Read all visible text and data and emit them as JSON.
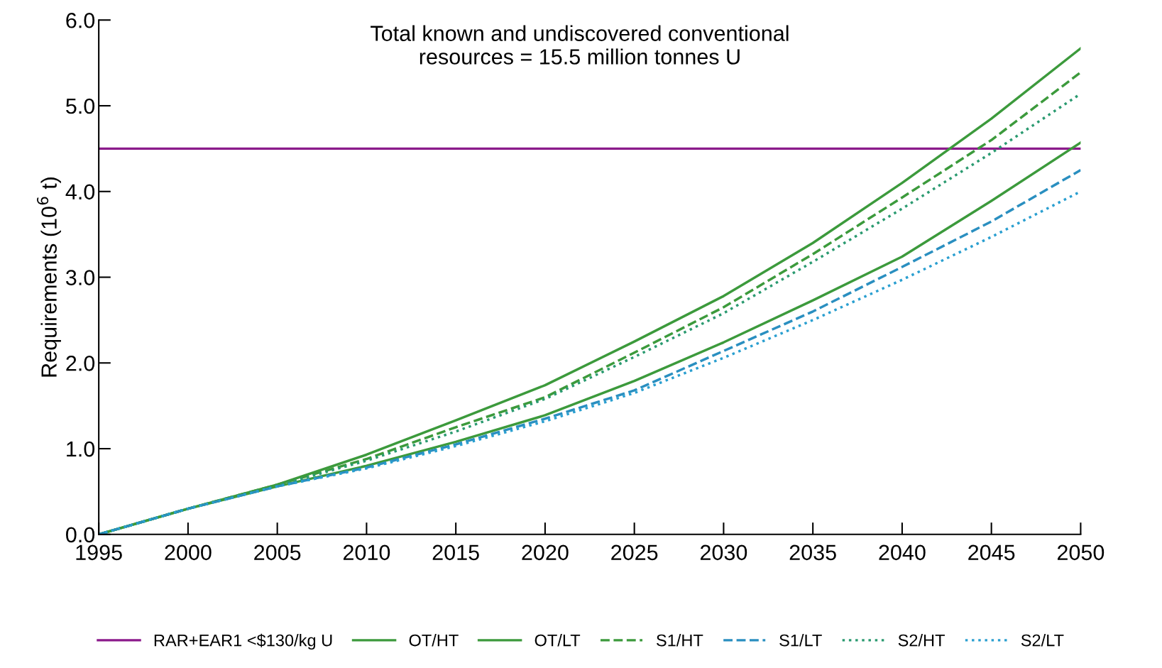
{
  "chart_data": {
    "type": "line",
    "ylabel": "Requirements (10$^{6}$ t)",
    "annotations": [
      "Total known and undiscovered conventional\nresources = 15.5 million tonnes U"
    ],
    "x": [
      1995,
      2000,
      2005,
      2010,
      2015,
      2020,
      2025,
      2030,
      2035,
      2040,
      2045,
      2050
    ],
    "series": [
      {
        "name": "RAR+EAR1 <$130/kg U",
        "color": "#8b1a8b",
        "line_style": "solid",
        "x": [
          1995,
          2050
        ],
        "values": [
          4.5,
          4.5
        ]
      },
      {
        "name": "OT/HT",
        "color": "#3c9a3c",
        "line_style": "solid",
        "values": [
          0,
          0.3,
          0.58,
          0.93,
          1.33,
          1.74,
          2.25,
          2.78,
          3.4,
          4.1,
          4.85,
          5.67
        ]
      },
      {
        "name": "OT/LT",
        "color": "#3c9a3c",
        "line_style": "solid",
        "values": [
          0,
          0.3,
          0.56,
          0.8,
          1.08,
          1.39,
          1.79,
          2.24,
          2.73,
          3.24,
          3.89,
          4.57
        ]
      },
      {
        "name": "S1/HT",
        "color": "#3c9a3c",
        "line_style": "dashed",
        "values": [
          0,
          0.3,
          0.58,
          0.88,
          1.25,
          1.6,
          2.12,
          2.65,
          3.27,
          3.93,
          4.6,
          5.39
        ]
      },
      {
        "name": "S1/LT",
        "color": "#2a8fc0",
        "line_style": "dashed",
        "values": [
          0,
          0.3,
          0.56,
          0.78,
          1.05,
          1.35,
          1.68,
          2.14,
          2.6,
          3.12,
          3.65,
          4.25
        ]
      },
      {
        "name": "S2/HT",
        "color": "#2a9a70",
        "line_style": "dotted",
        "values": [
          0,
          0.3,
          0.57,
          0.86,
          1.2,
          1.58,
          2.07,
          2.58,
          3.18,
          3.8,
          4.45,
          5.14
        ]
      },
      {
        "name": "S2/LT",
        "color": "#2a9fd0",
        "line_style": "dotted",
        "values": [
          0,
          0.3,
          0.56,
          0.77,
          1.03,
          1.32,
          1.65,
          2.06,
          2.5,
          2.97,
          3.47,
          4.0
        ]
      }
    ],
    "xlim": [
      1995,
      2050
    ],
    "xticks": [
      1995,
      2000,
      2005,
      2010,
      2015,
      2020,
      2025,
      2030,
      2035,
      2040,
      2045,
      2050
    ],
    "ylim": [
      0,
      6
    ],
    "yticks": [
      {
        "value": 0,
        "label": "0.0"
      },
      {
        "value": 1,
        "label": "1.0"
      },
      {
        "value": 2,
        "label": "2.0"
      },
      {
        "value": 3,
        "label": "3.0"
      },
      {
        "value": 4,
        "label": "4.0"
      },
      {
        "value": 5,
        "label": "5.0"
      },
      {
        "value": 6,
        "label": "6.0"
      }
    ],
    "grid": false,
    "legend": "bottom"
  }
}
